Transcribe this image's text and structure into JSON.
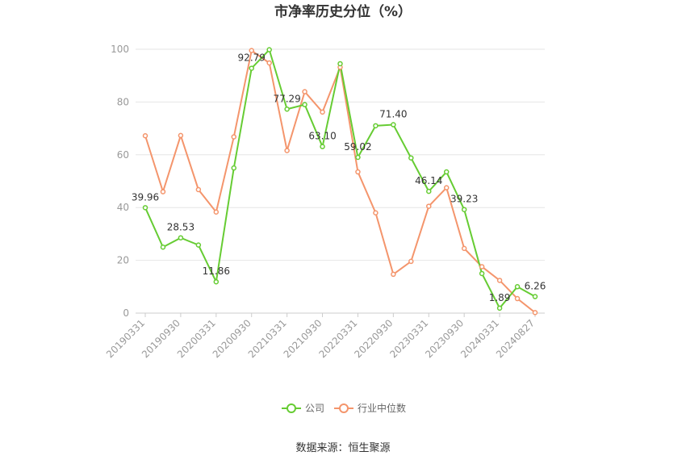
{
  "chart_data": {
    "type": "line",
    "title": "市净率历史分位（%）",
    "xlabel": "",
    "ylabel": "",
    "ylim": [
      0,
      100
    ],
    "yticks": [
      0,
      20,
      40,
      60,
      80,
      100
    ],
    "grid": true,
    "legend_position": "bottom",
    "x": [
      "20190331",
      "20190630",
      "20190930",
      "20191231",
      "20200331",
      "20200630",
      "20200930",
      "20201231",
      "20210331",
      "20210630",
      "20210930",
      "20211231",
      "20220331",
      "20220630",
      "20220930",
      "20221231",
      "20230331",
      "20230630",
      "20230930",
      "20231231",
      "20240331",
      "20240630",
      "20240827"
    ],
    "x_tick_labels": [
      "20190331",
      "20190930",
      "20200331",
      "20200930",
      "20210331",
      "20210930",
      "20220331",
      "20220930",
      "20230331",
      "20230930",
      "20240331",
      "20240827"
    ],
    "series": [
      {
        "name": "公司",
        "color": "#66cc33",
        "values": [
          39.96,
          25.0,
          28.53,
          25.8,
          11.86,
          55.0,
          92.79,
          99.8,
          77.29,
          79.0,
          63.1,
          94.5,
          59.02,
          71.0,
          71.4,
          58.8,
          46.14,
          53.5,
          39.23,
          15.0,
          1.89,
          10.0,
          6.26
        ],
        "labels": [
          "39.96",
          "",
          "28.53",
          "",
          "11.86",
          "",
          "92.79",
          "",
          "77.29",
          "",
          "63.10",
          "",
          "59.02",
          "",
          "71.40",
          "",
          "46.14",
          "",
          "39.23",
          "",
          "1.89",
          "",
          "6.26"
        ]
      },
      {
        "name": "行业中位数",
        "color": "#f4956c",
        "values": [
          67.2,
          46.0,
          67.3,
          46.8,
          38.3,
          66.8,
          99.5,
          94.8,
          61.6,
          83.9,
          76.2,
          93.2,
          53.5,
          38.0,
          14.7,
          19.6,
          40.5,
          47.5,
          24.5,
          17.6,
          12.4,
          5.5,
          0.2
        ]
      }
    ]
  },
  "source_text": "数据来源：恒生聚源"
}
